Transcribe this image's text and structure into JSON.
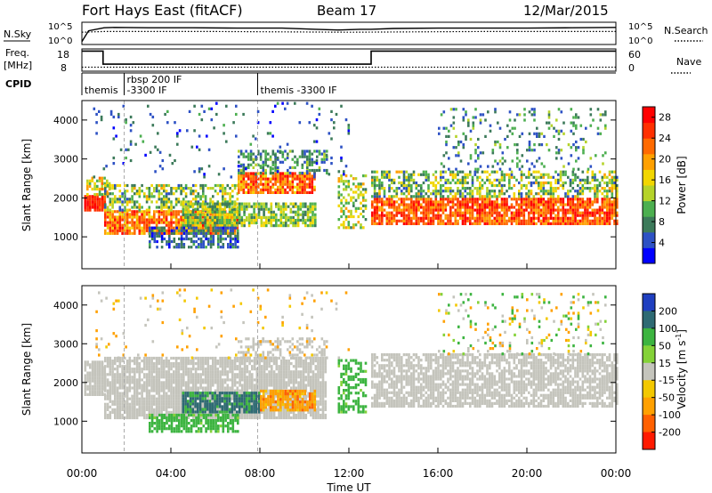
{
  "header": {
    "station": "Fort Hays East (fitACF)",
    "beam": "Beam 17",
    "date": "12/Mar/2015"
  },
  "panel_labels": {
    "nsky": "N.Sky",
    "freq_line1": "Freq.",
    "freq_line2": "[MHz]",
    "cpid": "CPID",
    "nsearch": "N.Search",
    "nave": "Nave"
  },
  "cpid_labels": [
    {
      "start_hour": 0.0,
      "line1": "themis",
      "line2": ""
    },
    {
      "start_hour": 1.9,
      "line1": "rbsp 200 IF",
      "line2": "-3300 IF"
    },
    {
      "start_hour": 7.9,
      "line1": "themis -3300 IF",
      "line2": ""
    }
  ],
  "noise_axis": {
    "left_ticks": [
      "10^5",
      "10^0"
    ],
    "right_ticks": [
      "10^5",
      "10^0"
    ]
  },
  "freq_axis": {
    "left_ticks": [
      "18",
      "8"
    ],
    "right_ticks": [
      "60",
      "0"
    ]
  },
  "chart_data": [
    {
      "type": "line",
      "name": "noise",
      "x_range_hours": [
        0,
        24
      ],
      "series": [
        {
          "name": "N.Sky",
          "style": "solid",
          "x": [
            0,
            0.3,
            1.0,
            1.5,
            3,
            5,
            7,
            9,
            10.5,
            11.5,
            12.5,
            13,
            14,
            16,
            18,
            20,
            22,
            24
          ],
          "y_log10": [
            0.3,
            3.2,
            4.0,
            4.1,
            4.0,
            4.0,
            3.9,
            3.9,
            3.6,
            3.4,
            3.6,
            3.6,
            3.8,
            3.9,
            3.9,
            3.9,
            4.0,
            4.1
          ]
        },
        {
          "name": "N.Search",
          "style": "dotted",
          "x": [
            0,
            1,
            3,
            6,
            9,
            12,
            15,
            18,
            21,
            24
          ],
          "y_log10": [
            2.8,
            3.0,
            3.0,
            3.0,
            2.9,
            2.8,
            2.9,
            3.0,
            3.0,
            3.0
          ]
        }
      ]
    },
    {
      "type": "line",
      "name": "frequency",
      "x_range_hours": [
        0,
        24
      ],
      "series": [
        {
          "name": "Freq.",
          "style": "solid",
          "x": [
            0,
            0.95,
            0.95,
            13.0,
            13.0,
            24
          ],
          "y": [
            17.8,
            17.8,
            10.8,
            10.8,
            17.8,
            17.8
          ]
        },
        {
          "name": "Nave",
          "style": "dotted",
          "x": [
            0,
            24
          ],
          "y": [
            9.2,
            9.2
          ]
        }
      ]
    },
    {
      "type": "heatmap",
      "name": "power",
      "xlabel": "",
      "ylabel": "Slant Range [km]",
      "xlim": [
        0,
        24
      ],
      "ylim": [
        180,
        4500
      ],
      "yticks": [
        1000,
        2000,
        3000,
        4000
      ],
      "colorbar": {
        "label": "Power [dB]",
        "ticks": [
          4,
          8,
          12,
          16,
          20,
          24,
          28
        ],
        "range": [
          0,
          30
        ],
        "colors": [
          "#0000ff",
          "#2d51c4",
          "#3c7a5a",
          "#4caf50",
          "#b5d32a",
          "#f2d600",
          "#ffa000",
          "#ff6a00",
          "#ff3000",
          "#ff0000"
        ]
      },
      "regions": [
        {
          "t0": 0.1,
          "t1": 1.0,
          "r_lo": 1650,
          "r_hi": 2050,
          "v_center": 26,
          "v_spread": 3,
          "density": 0.95
        },
        {
          "t0": 0.2,
          "t1": 1.2,
          "r_lo": 2050,
          "r_hi": 2500,
          "v_center": 16,
          "v_spread": 6,
          "density": 0.6
        },
        {
          "t0": 1.0,
          "t1": 7.0,
          "r_lo": 1050,
          "r_hi": 1650,
          "v_center": 22,
          "v_spread": 6,
          "density": 0.85
        },
        {
          "t0": 1.0,
          "t1": 7.0,
          "r_lo": 1650,
          "r_hi": 2300,
          "v_center": 12,
          "v_spread": 7,
          "density": 0.55
        },
        {
          "t0": 7.0,
          "t1": 10.5,
          "r_lo": 2100,
          "r_hi": 2600,
          "v_center": 22,
          "v_spread": 6,
          "density": 0.85
        },
        {
          "t0": 7.0,
          "t1": 11.0,
          "r_lo": 2600,
          "r_hi": 3200,
          "v_center": 8,
          "v_spread": 5,
          "density": 0.5
        },
        {
          "t0": 4.5,
          "t1": 10.5,
          "r_lo": 1250,
          "r_hi": 1850,
          "v_center": 12,
          "v_spread": 5,
          "density": 0.8
        },
        {
          "t0": 3.0,
          "t1": 7.0,
          "r_lo": 700,
          "r_hi": 1200,
          "v_center": 6,
          "v_spread": 4,
          "density": 0.65
        },
        {
          "t0": 11.5,
          "t1": 12.8,
          "r_lo": 1200,
          "r_hi": 2600,
          "v_center": 14,
          "v_spread": 6,
          "density": 0.45
        },
        {
          "t0": 13.0,
          "t1": 24.0,
          "r_lo": 1300,
          "r_hi": 2000,
          "v_center": 24,
          "v_spread": 5,
          "density": 0.85
        },
        {
          "t0": 13.0,
          "t1": 24.0,
          "r_lo": 2000,
          "r_hi": 2700,
          "v_center": 12,
          "v_spread": 7,
          "density": 0.55
        },
        {
          "t0": 16.0,
          "t1": 23.5,
          "r_lo": 2700,
          "r_hi": 4300,
          "v_center": 8,
          "v_spread": 5,
          "density": 0.15
        },
        {
          "t0": 0.5,
          "t1": 12.0,
          "r_lo": 2500,
          "r_hi": 4400,
          "v_center": 6,
          "v_spread": 4,
          "density": 0.05
        }
      ]
    },
    {
      "type": "heatmap",
      "name": "velocity",
      "xlabel": "Time UT",
      "ylabel": "Slant Range [km]",
      "xlim": [
        0,
        24
      ],
      "ylim": [
        180,
        4500
      ],
      "xticks": [
        "00:00",
        "04:00",
        "08:00",
        "12:00",
        "16:00",
        "20:00",
        "00:00"
      ],
      "yticks": [
        1000,
        2000,
        3000,
        4000
      ],
      "colorbar": {
        "label": "Velocity [m s^-1]",
        "ticks": [
          "200",
          "100",
          "50",
          "15",
          "-15",
          "-50",
          "-100",
          "-200"
        ],
        "range": [
          -250,
          250
        ],
        "bands": [
          {
            "min": 150,
            "max": 250,
            "color": "#1f3fc0"
          },
          {
            "min": 75,
            "max": 150,
            "color": "#2e6a73"
          },
          {
            "min": 32,
            "max": 75,
            "color": "#3cb440"
          },
          {
            "min": 15,
            "max": 32,
            "color": "#84d238"
          },
          {
            "min": -15,
            "max": 15,
            "color": "#c4c4bc"
          },
          {
            "min": -32,
            "max": -15,
            "color": "#f3c800"
          },
          {
            "min": -75,
            "max": -32,
            "color": "#ffa000"
          },
          {
            "min": -150,
            "max": -75,
            "color": "#ff6000"
          },
          {
            "min": -250,
            "max": -150,
            "color": "#ff1a00"
          }
        ]
      },
      "regions": [
        {
          "t0": 0.1,
          "t1": 1.0,
          "r_lo": 1650,
          "r_hi": 2500,
          "v_center": 0,
          "v_spread": 6,
          "density": 0.9
        },
        {
          "t0": 1.0,
          "t1": 11.0,
          "r_lo": 1050,
          "r_hi": 2600,
          "v_center": 0,
          "v_spread": 8,
          "density": 0.85
        },
        {
          "t0": 7.0,
          "t1": 11.0,
          "r_lo": 2600,
          "r_hi": 3100,
          "v_center": 0,
          "v_spread": 10,
          "density": 0.4
        },
        {
          "t0": 4.5,
          "t1": 8.0,
          "r_lo": 1200,
          "r_hi": 1750,
          "v_center": 90,
          "v_spread": 40,
          "density": 0.85
        },
        {
          "t0": 8.0,
          "t1": 10.5,
          "r_lo": 1250,
          "r_hi": 1800,
          "v_center": -55,
          "v_spread": 30,
          "density": 0.85
        },
        {
          "t0": 3.0,
          "t1": 7.0,
          "r_lo": 700,
          "r_hi": 1150,
          "v_center": 45,
          "v_spread": 15,
          "density": 0.75
        },
        {
          "t0": 11.5,
          "t1": 12.8,
          "r_lo": 1200,
          "r_hi": 2600,
          "v_center": 40,
          "v_spread": 10,
          "density": 0.45
        },
        {
          "t0": 13.0,
          "t1": 24.0,
          "r_lo": 1350,
          "r_hi": 2700,
          "v_center": 0,
          "v_spread": 8,
          "density": 0.75
        },
        {
          "t0": 16.0,
          "t1": 23.5,
          "r_lo": 2700,
          "r_hi": 4300,
          "v_center": 0,
          "v_spread": 60,
          "density": 0.12
        },
        {
          "t0": 0.5,
          "t1": 12.0,
          "r_lo": 2600,
          "r_hi": 4400,
          "v_center": -30,
          "v_spread": 40,
          "density": 0.05
        }
      ]
    }
  ]
}
